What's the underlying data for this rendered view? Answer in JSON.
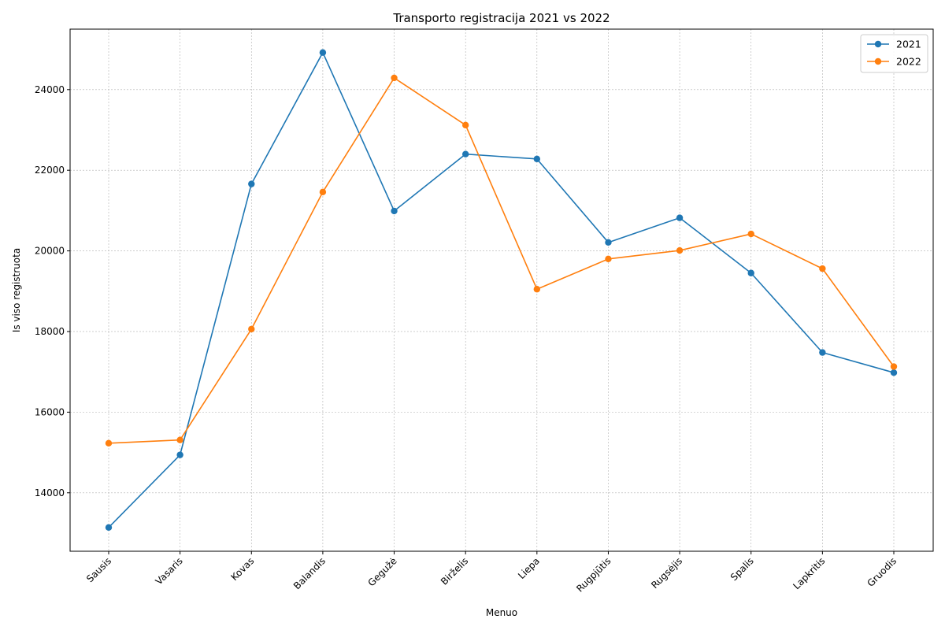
{
  "chart_data": {
    "type": "line",
    "title": "Transporto registracija 2021 vs 2022",
    "xlabel": "Menuo",
    "ylabel": "Is viso registruota",
    "categories": [
      "Sausis",
      "Vasaris",
      "Kovas",
      "Balandis",
      "Gegužė",
      "Birželis",
      "Liepa",
      "Rugpjūtis",
      "Rugsėjis",
      "Spalis",
      "Lapkritis",
      "Gruodis"
    ],
    "ylim": [
      12550,
      25500
    ],
    "yticks": [
      14000,
      16000,
      18000,
      20000,
      22000,
      24000
    ],
    "grid": true,
    "legend_position": "top-right",
    "series": [
      {
        "name": "2021",
        "color": "#1f77b4",
        "values": [
          13140,
          14940,
          21660,
          24920,
          20990,
          22400,
          22280,
          20210,
          20820,
          19450,
          17480,
          16980
        ]
      },
      {
        "name": "2022",
        "color": "#ff7f0e",
        "values": [
          15230,
          15310,
          18060,
          21460,
          24290,
          23120,
          19050,
          19800,
          20010,
          20420,
          19560,
          17130
        ]
      }
    ]
  }
}
